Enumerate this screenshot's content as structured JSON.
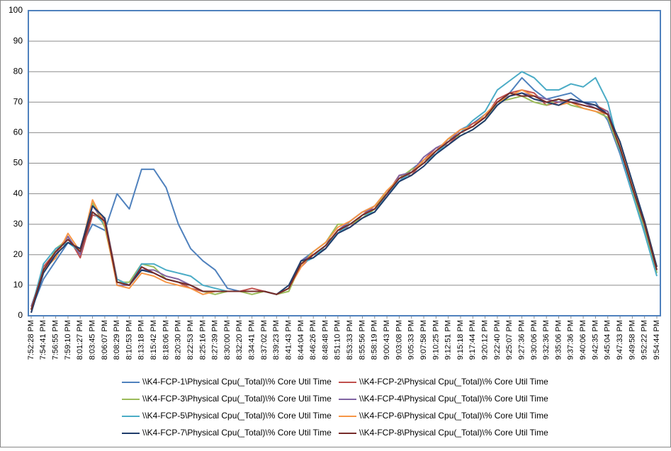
{
  "chart_data": {
    "type": "line",
    "categories": [
      "7:52:28 PM",
      "7:54:41 PM",
      "7:56:55 PM",
      "7:59:10 PM",
      "8:01:27 PM",
      "8:03:45 PM",
      "8:06:07 PM",
      "8:08:29 PM",
      "8:10:53 PM",
      "8:13:18 PM",
      "8:15:42 PM",
      "8:18:06 PM",
      "8:20:30 PM",
      "8:22:53 PM",
      "8:25:16 PM",
      "8:27:39 PM",
      "8:30:00 PM",
      "8:32:20 PM",
      "8:34:41 PM",
      "8:37:02 PM",
      "8:39:23 PM",
      "8:41:43 PM",
      "8:44:04 PM",
      "8:46:26 PM",
      "8:48:48 PM",
      "8:51:10 PM",
      "8:53:33 PM",
      "8:55:56 PM",
      "8:58:19 PM",
      "9:00:43 PM",
      "9:03:08 PM",
      "9:05:33 PM",
      "9:07:58 PM",
      "9:10:25 PM",
      "9:12:51 PM",
      "9:15:18 PM",
      "9:17:44 PM",
      "9:20:12 PM",
      "9:22:40 PM",
      "9:25:07 PM",
      "9:27:36 PM",
      "9:30:06 PM",
      "9:32:36 PM",
      "9:35:06 PM",
      "9:37:36 PM",
      "9:40:06 PM",
      "9:42:35 PM",
      "9:45:04 PM",
      "9:47:33 PM",
      "9:49:58 PM",
      "9:52:22 PM",
      "9:54:44 PM"
    ],
    "series": [
      {
        "name": "\\\\K4-FCP-1\\Physical Cpu(_Total)\\% Core Util Time",
        "color": "#4f81bd",
        "values": [
          2,
          12,
          18,
          24,
          22,
          30,
          28,
          40,
          35,
          48,
          48,
          42,
          30,
          22,
          18,
          15,
          9,
          8,
          8,
          8,
          7,
          9,
          18,
          21,
          24,
          27,
          31,
          34,
          36,
          41,
          44,
          48,
          51,
          53,
          58,
          61,
          63,
          66,
          69,
          73,
          78,
          74,
          71,
          72,
          73,
          70,
          70,
          64,
          53,
          40,
          28,
          14
        ]
      },
      {
        "name": "\\\\K4-FCP-2\\Physical Cpu(_Total)\\% Core Util Time",
        "color": "#c0504d",
        "values": [
          1,
          16,
          21,
          26,
          19,
          33,
          32,
          12,
          10,
          16,
          14,
          12,
          11,
          9,
          8,
          8,
          8,
          8,
          9,
          8,
          7,
          9,
          16,
          20,
          22,
          28,
          29,
          33,
          36,
          40,
          46,
          46,
          51,
          55,
          56,
          60,
          63,
          65,
          71,
          73,
          74,
          73,
          69,
          70,
          71,
          70,
          69,
          67,
          56,
          43,
          31,
          16
        ]
      },
      {
        "name": "\\\\K4-FCP-3\\Physical Cpu(_Total)\\% Core Util Time",
        "color": "#9bbb59",
        "values": [
          2,
          14,
          22,
          25,
          21,
          37,
          29,
          11,
          11,
          17,
          16,
          12,
          11,
          10,
          8,
          7,
          8,
          8,
          7,
          8,
          7,
          8,
          17,
          21,
          24,
          30,
          30,
          32,
          35,
          41,
          45,
          48,
          50,
          54,
          58,
          59,
          61,
          64,
          70,
          71,
          72,
          70,
          69,
          71,
          69,
          68,
          67,
          65,
          54,
          41,
          29,
          14
        ]
      },
      {
        "name": "\\\\K4-FCP-4\\Physical Cpu(_Total)\\% Core Util Time",
        "color": "#8064a2",
        "values": [
          3,
          15,
          20,
          26,
          20,
          36,
          31,
          10,
          10,
          15,
          15,
          13,
          12,
          10,
          8,
          8,
          8,
          8,
          8,
          8,
          7,
          9,
          18,
          20,
          23,
          28,
          31,
          34,
          35,
          39,
          46,
          47,
          52,
          55,
          57,
          61,
          62,
          65,
          70,
          72,
          73,
          72,
          71,
          70,
          70,
          70,
          68,
          67,
          56,
          42,
          30,
          15
        ]
      },
      {
        "name": "\\\\K4-FCP-5\\Physical Cpu(_Total)\\% Core Util Time",
        "color": "#4bacc6",
        "values": [
          2,
          17,
          22,
          24,
          21,
          34,
          30,
          12,
          10,
          17,
          17,
          15,
          14,
          13,
          10,
          9,
          8,
          8,
          8,
          8,
          7,
          9,
          17,
          19,
          23,
          27,
          30,
          33,
          34,
          40,
          44,
          47,
          50,
          53,
          57,
          60,
          64,
          67,
          74,
          77,
          80,
          78,
          74,
          74,
          76,
          75,
          78,
          70,
          54,
          40,
          27,
          13
        ]
      },
      {
        "name": "\\\\K4-FCP-6\\Physical Cpu(_Total)\\% Core Util Time",
        "color": "#f79646",
        "values": [
          2,
          15,
          19,
          27,
          21,
          38,
          30,
          10,
          9,
          14,
          13,
          11,
          10,
          9,
          7,
          8,
          8,
          8,
          8,
          8,
          7,
          9,
          16,
          21,
          24,
          29,
          31,
          34,
          36,
          41,
          45,
          47,
          51,
          54,
          58,
          61,
          62,
          66,
          70,
          72,
          74,
          72,
          70,
          69,
          70,
          68,
          67,
          66,
          56,
          43,
          31,
          16
        ]
      },
      {
        "name": "\\\\K4-FCP-7\\Physical Cpu(_Total)\\% Core Util Time",
        "color": "#1f3d6b",
        "values": [
          1,
          14,
          20,
          24,
          22,
          36,
          32,
          11,
          10,
          15,
          14,
          12,
          11,
          10,
          8,
          8,
          8,
          8,
          8,
          8,
          7,
          10,
          18,
          19,
          22,
          27,
          29,
          32,
          34,
          39,
          44,
          46,
          49,
          53,
          56,
          59,
          61,
          64,
          69,
          72,
          73,
          71,
          70,
          69,
          71,
          70,
          69,
          66,
          57,
          44,
          31,
          16
        ]
      },
      {
        "name": "\\\\K4-FCP-8\\Physical Cpu(_Total)\\% Core Util Time",
        "color": "#772c2a",
        "values": [
          2,
          15,
          21,
          25,
          21,
          34,
          31,
          11,
          10,
          16,
          14,
          12,
          11,
          10,
          8,
          8,
          8,
          8,
          8,
          8,
          7,
          9,
          17,
          20,
          23,
          28,
          30,
          33,
          35,
          40,
          45,
          47,
          50,
          54,
          57,
          60,
          62,
          65,
          70,
          73,
          72,
          72,
          70,
          71,
          70,
          69,
          68,
          66,
          55,
          42,
          30,
          15
        ]
      }
    ],
    "ylim": [
      0,
      100
    ],
    "yticks": [
      0,
      10,
      20,
      30,
      40,
      50,
      60,
      70,
      80,
      90,
      100
    ],
    "grid": true
  }
}
